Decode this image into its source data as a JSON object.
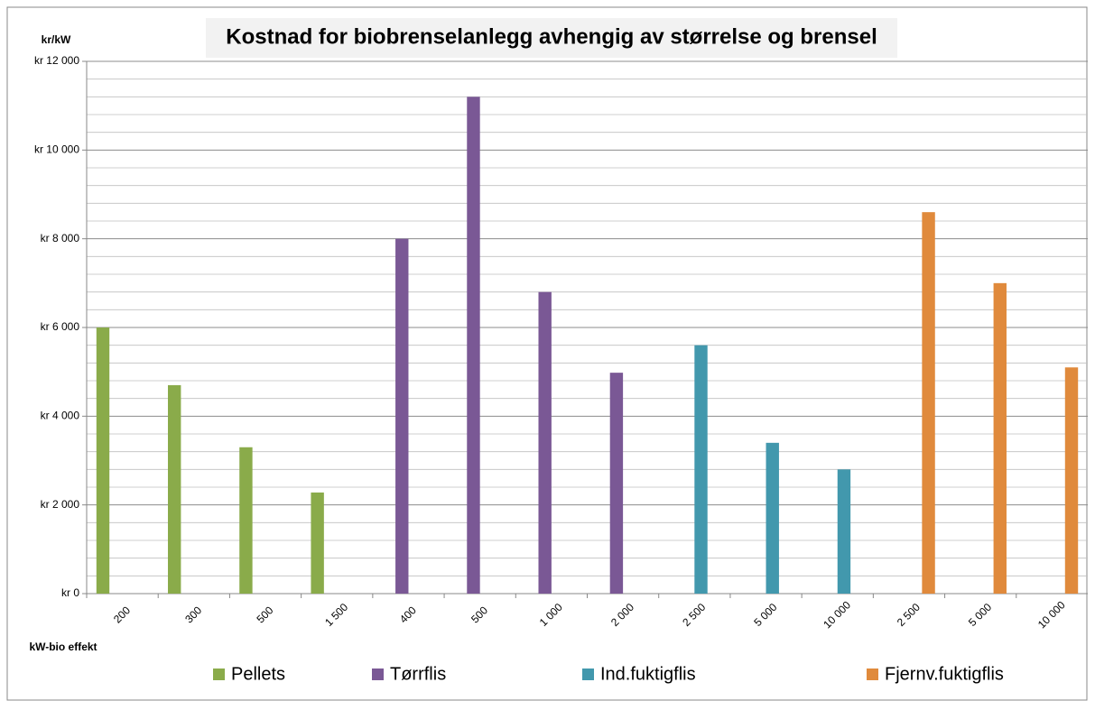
{
  "chart_data": {
    "type": "bar",
    "title": "Kostnad for biobrenselanlegg avhengig av størrelse og brensel",
    "y_label": "kr/kW",
    "x_label": "kW-bio effekt",
    "categories": [
      "200",
      "300",
      "500",
      "1 500",
      "400",
      "500",
      "1 000",
      "2 000",
      "2 500",
      "5 000",
      "10 000",
      "2 500",
      "5 000",
      "10 000"
    ],
    "series": [
      {
        "name": "Pellets",
        "color": "#8aab4a",
        "values": [
          6000,
          4700,
          3300,
          2280,
          null,
          null,
          null,
          null,
          null,
          null,
          null,
          null,
          null,
          null
        ]
      },
      {
        "name": "Tørrflis",
        "color": "#7a5895",
        "values": [
          null,
          null,
          null,
          null,
          8000,
          11200,
          6800,
          4980,
          null,
          null,
          null,
          null,
          null,
          null
        ]
      },
      {
        "name": "Ind.fuktigflis",
        "color": "#4298ad",
        "values": [
          null,
          null,
          null,
          null,
          null,
          null,
          null,
          null,
          5600,
          3400,
          2800,
          null,
          null,
          null
        ]
      },
      {
        "name": "Fjernv.fuktigflis",
        "color": "#e08a3c",
        "values": [
          null,
          null,
          null,
          null,
          null,
          null,
          null,
          null,
          null,
          null,
          null,
          8600,
          7000,
          5100
        ]
      }
    ],
    "ylim": [
      0,
      12000
    ],
    "yticks": [
      {
        "value": 0,
        "label": "kr 0"
      },
      {
        "value": 2000,
        "label": "kr 2 000"
      },
      {
        "value": 4000,
        "label": "kr 4 000"
      },
      {
        "value": 6000,
        "label": "kr 6 000"
      },
      {
        "value": 8000,
        "label": "kr 8 000"
      },
      {
        "value": 10000,
        "label": "kr 10 000"
      },
      {
        "value": 12000,
        "label": "kr 12 000"
      }
    ],
    "minor_yticks": [
      400,
      800,
      1200,
      1600,
      2400,
      2800,
      3200,
      3600,
      4400,
      4800,
      5200,
      5600,
      6400,
      6800,
      7200,
      7600,
      8400,
      8800,
      9200,
      9600,
      10400,
      10800,
      11200,
      11600
    ],
    "grid": true,
    "legend": "bottom"
  }
}
